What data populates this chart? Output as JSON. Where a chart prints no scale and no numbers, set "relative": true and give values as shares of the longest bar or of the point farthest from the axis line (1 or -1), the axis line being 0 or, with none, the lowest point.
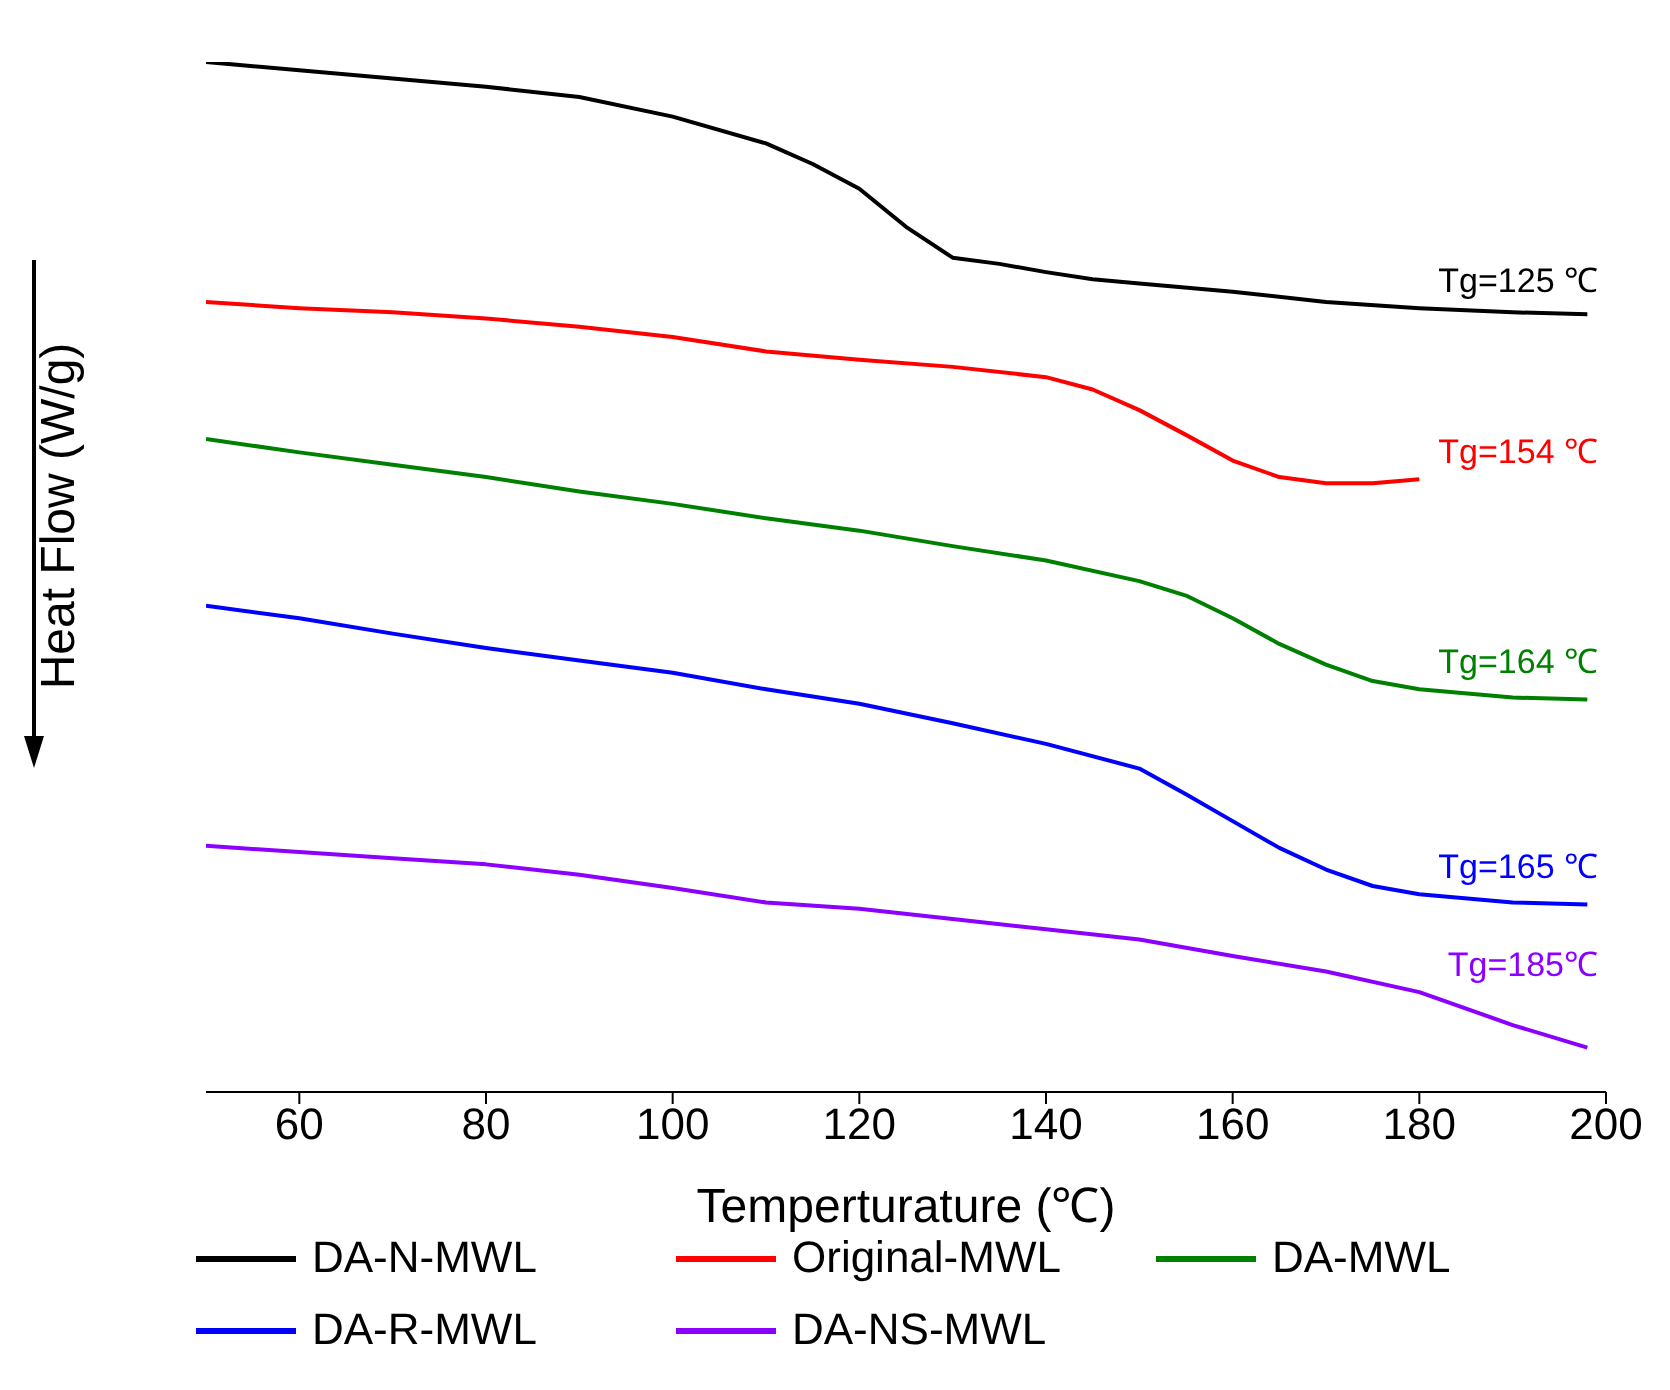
{
  "chart_data": {
    "type": "line",
    "relative": true,
    "xlabel": "Temperturature (℃)",
    "ylabel": "Heat Flow (W/g)",
    "xlim": [
      50,
      200
    ],
    "xticks": [
      60,
      80,
      100,
      120,
      140,
      160,
      180,
      200
    ],
    "grid": false,
    "legend": "bottom",
    "marker": "none",
    "line_style": "solid",
    "series": [
      {
        "name": "DA-N-MWL",
        "color": "#000000",
        "x": [
          50,
          60,
          70,
          80,
          90,
          100,
          110,
          115,
          120,
          125,
          130,
          135,
          140,
          145,
          150,
          160,
          170,
          180,
          190,
          198
        ],
        "values": [
          1.0,
          0.992,
          0.984,
          0.976,
          0.966,
          0.947,
          0.921,
          0.901,
          0.877,
          0.84,
          0.81,
          0.804,
          0.796,
          0.789,
          0.785,
          0.777,
          0.767,
          0.761,
          0.757,
          0.755
        ]
      },
      {
        "name": "Original-MWL",
        "color": "#ff0000",
        "x": [
          50,
          60,
          70,
          80,
          90,
          100,
          110,
          120,
          130,
          140,
          145,
          150,
          155,
          160,
          165,
          170,
          175,
          180
        ],
        "values": [
          0.767,
          0.761,
          0.757,
          0.751,
          0.743,
          0.733,
          0.719,
          0.711,
          0.704,
          0.694,
          0.682,
          0.662,
          0.638,
          0.613,
          0.597,
          0.591,
          0.591,
          0.595
        ]
      },
      {
        "name": "DA-MWL",
        "color": "#008000",
        "x": [
          50,
          60,
          70,
          80,
          90,
          100,
          110,
          120,
          130,
          140,
          150,
          155,
          160,
          165,
          170,
          175,
          180,
          190,
          198
        ],
        "values": [
          0.634,
          0.621,
          0.609,
          0.597,
          0.583,
          0.571,
          0.557,
          0.545,
          0.53,
          0.516,
          0.496,
          0.482,
          0.46,
          0.435,
          0.415,
          0.399,
          0.391,
          0.383,
          0.381
        ]
      },
      {
        "name": "DA-R-MWL",
        "color": "#0000ff",
        "x": [
          50,
          60,
          70,
          80,
          90,
          100,
          110,
          120,
          130,
          140,
          150,
          155,
          160,
          165,
          170,
          175,
          180,
          190,
          198
        ],
        "values": [
          0.472,
          0.46,
          0.445,
          0.431,
          0.419,
          0.407,
          0.391,
          0.377,
          0.358,
          0.338,
          0.314,
          0.289,
          0.263,
          0.237,
          0.216,
          0.2,
          0.192,
          0.184,
          0.182
        ]
      },
      {
        "name": "DA-NS-MWL",
        "color": "#8b00ff",
        "x": [
          50,
          60,
          70,
          80,
          90,
          100,
          110,
          120,
          130,
          140,
          150,
          160,
          170,
          180,
          190,
          198
        ],
        "values": [
          0.239,
          0.233,
          0.227,
          0.221,
          0.211,
          0.198,
          0.184,
          0.178,
          0.168,
          0.158,
          0.148,
          0.132,
          0.117,
          0.097,
          0.065,
          0.043
        ]
      }
    ],
    "annotations": [
      "Tg=125 ℃",
      "Tg=154 ℃",
      "Tg=164 ℃",
      "Tg=165 ℃",
      "Tg=185℃"
    ]
  }
}
